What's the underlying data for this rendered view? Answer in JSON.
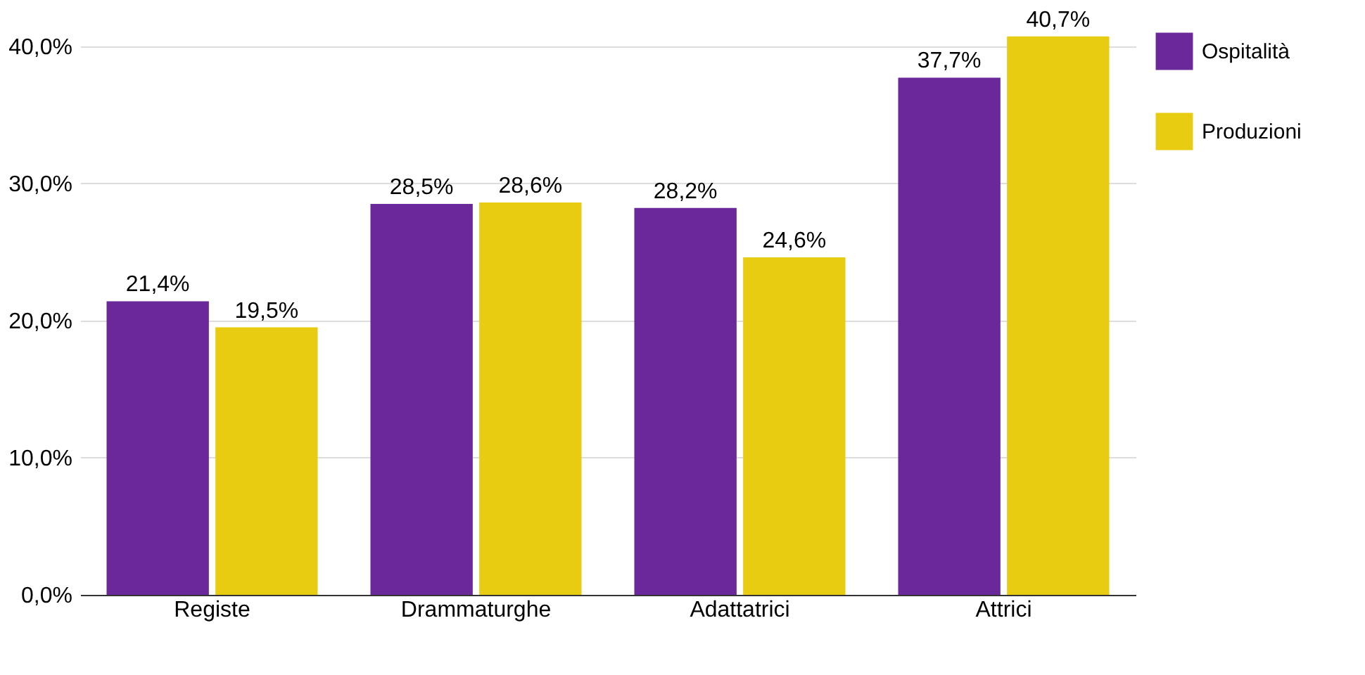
{
  "chart_data": {
    "type": "bar",
    "categories": [
      "Registe",
      "Drammaturghe",
      "Adattatrici",
      "Attrici"
    ],
    "series": [
      {
        "name": "Ospitalità",
        "color": "#6a289a",
        "values": [
          21.4,
          28.5,
          28.2,
          37.7
        ],
        "value_labels": [
          "21,4%",
          "28,5%",
          "28,2%",
          "37,7%"
        ]
      },
      {
        "name": "Produzioni",
        "color": "#e8cc12",
        "values": [
          19.5,
          28.6,
          24.6,
          40.7
        ],
        "value_labels": [
          "19,5%",
          "28,6%",
          "24,6%",
          "40,7%"
        ]
      }
    ],
    "ylim": [
      0,
      41
    ],
    "yticks": [
      {
        "value": 0,
        "label": "0,0%"
      },
      {
        "value": 10,
        "label": "10,0%"
      },
      {
        "value": 20,
        "label": "20,0%"
      },
      {
        "value": 30,
        "label": "30,0%"
      },
      {
        "value": 40,
        "label": "40,0%"
      }
    ],
    "grid": "y",
    "legend": "right"
  }
}
